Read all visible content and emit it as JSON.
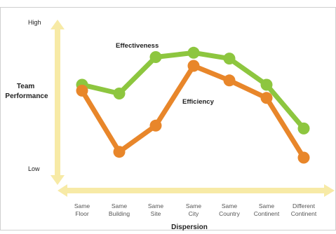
{
  "chart_data": {
    "type": "line",
    "title": "",
    "xlabel": "Dispersion",
    "ylabel": [
      "Team",
      "Performance"
    ],
    "y_high_label": "High",
    "y_low_label": "Low",
    "categories": [
      [
        "Same",
        "Floor"
      ],
      [
        "Same",
        "Building"
      ],
      [
        "Same",
        "Site"
      ],
      [
        "Same",
        "City"
      ],
      [
        "Same",
        "Country"
      ],
      [
        "Same",
        "Continent"
      ],
      [
        "Different",
        "Continent"
      ]
    ],
    "ylim": [
      0,
      100
    ],
    "grid": false,
    "legend": "none",
    "series": [
      {
        "name": "Effectiveness",
        "color": "#8dc63f",
        "values": [
          62,
          56,
          81,
          84,
          80,
          62,
          32
        ]
      },
      {
        "name": "Efficiency",
        "color": "#e8862a",
        "values": [
          58,
          16,
          34,
          75,
          65,
          53,
          12
        ]
      }
    ],
    "axis_color": "#f7eaa6"
  }
}
